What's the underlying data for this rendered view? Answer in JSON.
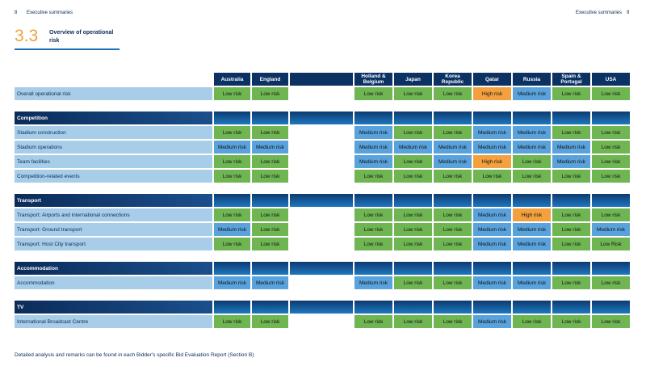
{
  "header": {
    "left_page": "8",
    "left_title": "Executive summaries",
    "right_title": "Executive summaries",
    "right_page": "9"
  },
  "section": {
    "number": "3.3",
    "title": "Overview of operational risk"
  },
  "columns": [
    "Australia",
    "England",
    "",
    "Holland & Belgium",
    "Japan",
    "Korea Republic",
    "Qatar",
    "Russia",
    "Spain & Portugal",
    "USA"
  ],
  "overall": {
    "label": "Overall operational risk",
    "values": [
      "Low risk",
      "Low risk",
      "",
      "Low risk",
      "Low risk",
      "Low risk",
      "High risk",
      "Medium risk",
      "Low risk",
      "Low risk"
    ]
  },
  "categories": [
    {
      "name": "Competition",
      "rows": [
        {
          "label": "Stadium construction",
          "values": [
            "Low risk",
            "Low risk",
            "",
            "Medium risk",
            "Low risk",
            "Low risk",
            "Medium risk",
            "Medium risk",
            "Low risk",
            "Low risk"
          ]
        },
        {
          "label": "Stadium operations",
          "values": [
            "Medium risk",
            "Medium risk",
            "",
            "Medium risk",
            "Medium risk",
            "Medium risk",
            "Medium risk",
            "Medium risk",
            "Medium risk",
            "Low risk"
          ]
        },
        {
          "label": "Team facilities",
          "values": [
            "Low risk",
            "Low risk",
            "",
            "Medium risk",
            "Low risk",
            "Medium risk",
            "High risk",
            "Low risk",
            "Medium risk",
            "Low risk"
          ]
        },
        {
          "label": "Competition-related events",
          "values": [
            "Low risk",
            "Low risk",
            "",
            "Low risk",
            "Low risk",
            "Low risk",
            "Low risk",
            "Low risk",
            "Low risk",
            "Low risk"
          ]
        }
      ]
    },
    {
      "name": "Transport",
      "rows": [
        {
          "label": "Transport: Airports and international connections",
          "values": [
            "Low risk",
            "Low risk",
            "",
            "Low risk",
            "Low risk",
            "Low risk",
            "Medium risk",
            "High risk",
            "Low risk",
            "Low risk"
          ]
        },
        {
          "label": "Transport: Ground transport",
          "values": [
            "Medium risk",
            "Low risk",
            "",
            "Low risk",
            "Low risk",
            "Low risk",
            "Medium risk",
            "Medium risk",
            "Low risk",
            "Medium risk"
          ]
        },
        {
          "label": "Transport: Host City transport",
          "values": [
            "Low risk",
            "Low risk",
            "",
            "Low risk",
            "Low risk",
            "Low risk",
            "Medium risk",
            "Medium risk",
            "Low risk",
            "Low Risk"
          ]
        }
      ]
    },
    {
      "name": "Accommodation",
      "rows": [
        {
          "label": "Accommodation",
          "values": [
            "Medium risk",
            "Medium risk",
            "",
            "Medium risk",
            "Low risk",
            "Low risk",
            "Medium risk",
            "Medium risk",
            "Low risk",
            "Low risk"
          ]
        }
      ]
    },
    {
      "name": "TV",
      "rows": [
        {
          "label": "International Broadcast Centre",
          "values": [
            "Low risk",
            "Low risk",
            "",
            "Low risk",
            "Low risk",
            "Low risk",
            "Medium risk",
            "Low risk",
            "Low risk",
            "Low risk"
          ]
        }
      ]
    }
  ],
  "footnote": "Detailed analysis and remarks can be found in each Bidder's specific Bid Evaluation Report (Section B)",
  "colors": {
    "low": "#6fb653",
    "medium": "#59a2dc",
    "high": "#f3a13f",
    "header_navy": "#0c3264",
    "label_blue": "#a7cde9",
    "section_orange": "#f0a040"
  }
}
